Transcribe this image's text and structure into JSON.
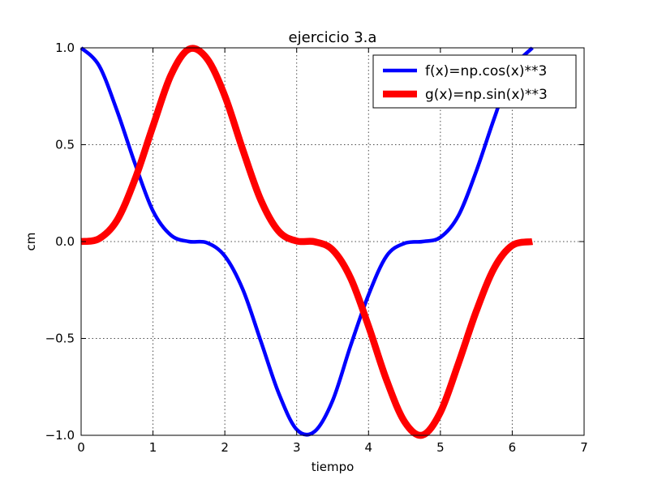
{
  "chart_data": {
    "type": "line",
    "title": "ejercicio 3.a",
    "xlabel": "tiempo",
    "ylabel": "cm",
    "xlim": [
      0,
      7
    ],
    "ylim": [
      -1.0,
      1.0
    ],
    "grid": true,
    "legend_position": "top-right",
    "x_ticks": [
      0,
      1,
      2,
      3,
      4,
      5,
      6,
      7
    ],
    "y_ticks": [
      -1.0,
      -0.5,
      0.0,
      0.5,
      1.0
    ],
    "x_tick_labels": [
      "0",
      "1",
      "2",
      "3",
      "4",
      "5",
      "6",
      "7"
    ],
    "y_tick_labels": [
      "−1.0",
      "−0.5",
      "0.0",
      "0.5",
      "1.0"
    ],
    "x": [
      0,
      0.25,
      0.5,
      0.75,
      1.0,
      1.25,
      1.5,
      1.75,
      2.0,
      2.25,
      2.5,
      2.75,
      3.0,
      3.25,
      3.5,
      3.75,
      4.0,
      4.25,
      4.5,
      4.75,
      5.0,
      5.25,
      5.5,
      5.75,
      6.0,
      6.28
    ],
    "series": [
      {
        "name": "f(x)=np.cos(x)**3",
        "color": "#0000ff",
        "values": [
          1.0,
          0.908,
          0.675,
          0.402,
          0.158,
          0.033,
          0.0,
          -0.006,
          -0.075,
          -0.247,
          -0.513,
          -0.783,
          -0.97,
          -0.98,
          -0.821,
          -0.538,
          -0.275,
          -0.075,
          -0.009,
          0.0,
          0.022,
          0.133,
          0.364,
          0.637,
          0.886,
          1.0
        ]
      },
      {
        "name": "g(x)=np.sin(x)**3",
        "color": "#ff0000",
        "values": [
          0.0,
          0.015,
          0.11,
          0.322,
          0.596,
          0.859,
          0.993,
          0.945,
          0.752,
          0.474,
          0.215,
          0.053,
          0.003,
          -0.001,
          -0.043,
          -0.188,
          -0.437,
          -0.714,
          -0.929,
          -0.999,
          -0.881,
          -0.63,
          -0.359,
          -0.136,
          -0.02,
          0.0
        ]
      }
    ]
  }
}
